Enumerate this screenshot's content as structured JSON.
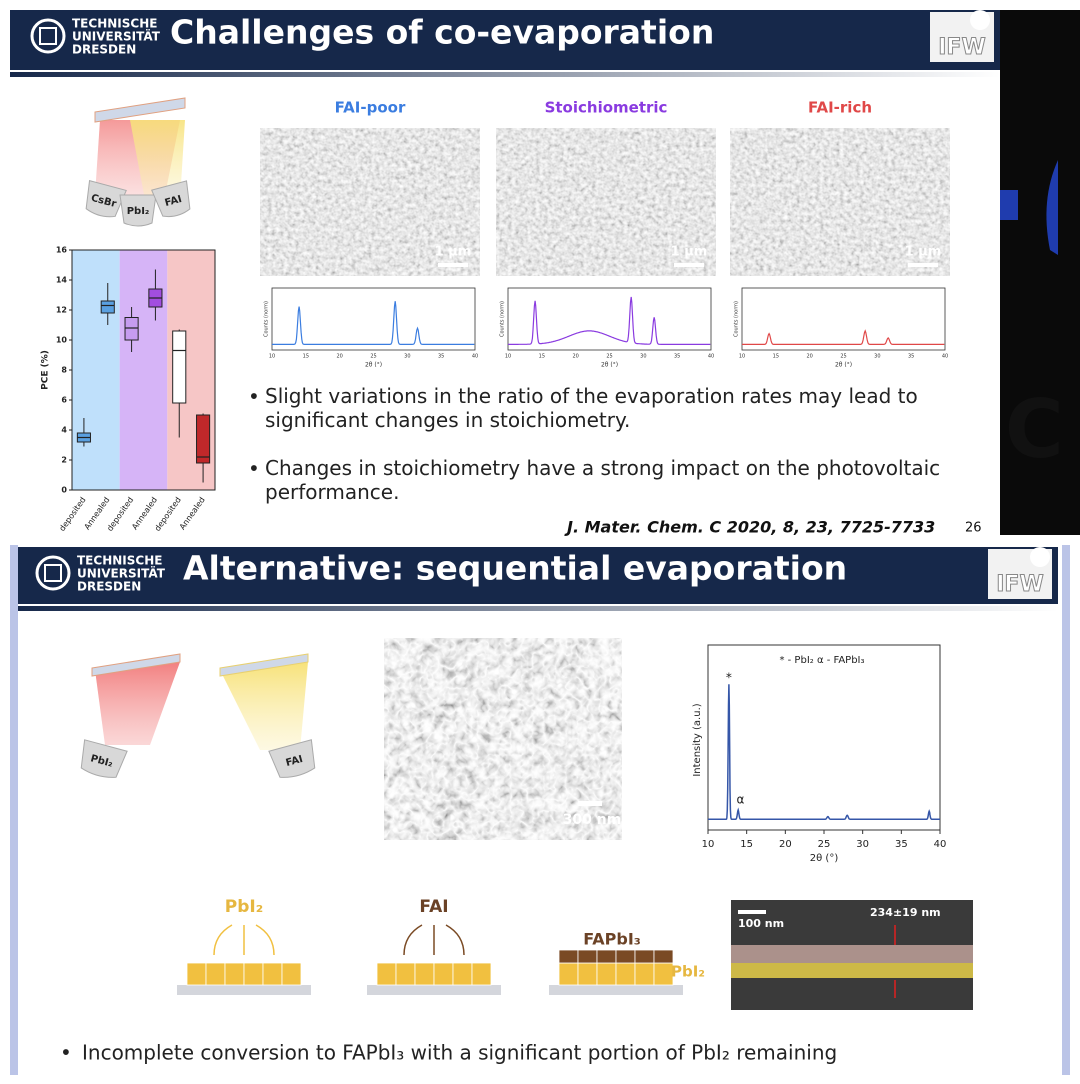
{
  "slides": [
    {
      "logo": [
        "TECHNISCHE",
        "UNIVERSITÄT",
        "DRESDEN"
      ],
      "title": "Challenges of co-evaporation",
      "ifw": "IFW",
      "sources": [
        "CsBr",
        "PbI₂",
        "FAI"
      ],
      "columns": [
        "FAI-poor",
        "Stoichiometric",
        "FAI-rich"
      ],
      "scale_bar": "1 µm",
      "xrd": {
        "ylabel": "Counts (norm)",
        "xlabel": "2θ (°)",
        "xticks": [
          "10",
          "15",
          "20",
          "25",
          "30",
          "35",
          "40"
        ]
      },
      "bullets": [
        "Slight variations in the ratio of the evaporation rates may lead to significant changes in stoichiometry.",
        "Changes in stoichiometry have a strong impact on the photovoltaic performance."
      ],
      "citation": "J. Mater. Chem. C 2020, 8, 23, 7725-7733",
      "page": "26",
      "edge_text": "C"
    },
    {
      "logo": [
        "TECHNISCHE",
        "UNIVERSITÄT",
        "DRESDEN"
      ],
      "title": "Alternative: sequential evaporation",
      "ifw": "IFW",
      "sources": [
        "PbI₂",
        "FAI"
      ],
      "scale_bar": "300 nm",
      "xrd": {
        "legend": "* - PbI₂  α - FAPbI₃",
        "ylabel": "Intensity (a.u.)",
        "xlabel": "2θ (°)",
        "xticks": [
          "10",
          "15",
          "20",
          "25",
          "30",
          "35",
          "40"
        ],
        "peaks": [
          "*",
          "α"
        ]
      },
      "steps": [
        "PbI₂",
        "FAI",
        "FAPbI₃",
        "PbI₂"
      ],
      "cross_section": [
        "100 nm",
        "234±19 nm"
      ],
      "bullets": [
        "Incomplete conversion to FAPbI₃ with a significant portion of PbI₂ remaining"
      ]
    }
  ],
  "chart_data": {
    "type": "box",
    "ylabel": "PCE (%)",
    "categories": [
      "deposited",
      "Annealed",
      "deposited",
      "Annealed",
      "deposited",
      "Annealed"
    ],
    "colors": [
      "#5aa0e0",
      "#5aa0e0",
      "#c69cf0",
      "#a24ee0",
      "#ffffff",
      "#c0282a"
    ],
    "bands": [
      "#bfe0fb",
      "#d6b4f7",
      "#f6c6c6"
    ],
    "series": [
      {
        "name": "min",
        "values": [
          2.9,
          11.0,
          9.2,
          11.3,
          3.5,
          0.5
        ]
      },
      {
        "name": "q1",
        "values": [
          3.2,
          11.8,
          10.0,
          12.2,
          5.8,
          1.8
        ]
      },
      {
        "name": "median",
        "values": [
          3.5,
          12.3,
          10.8,
          12.8,
          9.3,
          2.2
        ]
      },
      {
        "name": "q3",
        "values": [
          3.8,
          12.6,
          11.5,
          13.4,
          10.6,
          5.0
        ]
      },
      {
        "name": "max",
        "values": [
          4.8,
          13.8,
          12.2,
          14.7,
          10.7,
          5.1
        ]
      }
    ],
    "ylim": [
      0,
      16
    ],
    "yticks": [
      0,
      2,
      4,
      6,
      8,
      10,
      12,
      14,
      16
    ]
  }
}
